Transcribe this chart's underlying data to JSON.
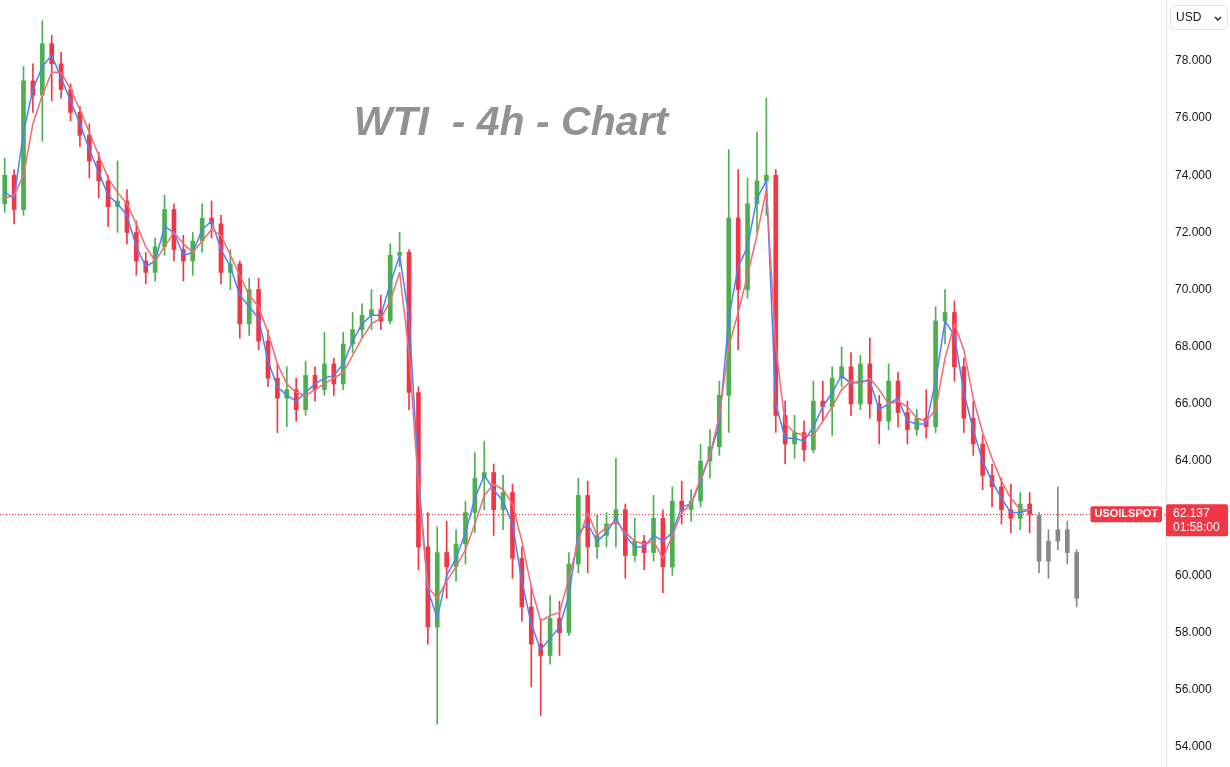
{
  "chart_data": {
    "type": "candlestick",
    "title": "WTI  - 4h - Chart",
    "ylabel": "USD",
    "tick_labels": "y",
    "categories": [
      null,
      null,
      null,
      null,
      null,
      null,
      null,
      null,
      null,
      null,
      null,
      null,
      null,
      null,
      null,
      null,
      null,
      null,
      null,
      null,
      null,
      null,
      null,
      null,
      null,
      null,
      null,
      null,
      null,
      null,
      null,
      null,
      null,
      null,
      null,
      null,
      null,
      null,
      null,
      null,
      null,
      null,
      null,
      null,
      null,
      null,
      null,
      null,
      null,
      null,
      null,
      null,
      null,
      null,
      null,
      null,
      null,
      null,
      null,
      null,
      null,
      null,
      null,
      null,
      null,
      null,
      null,
      null,
      null,
      null,
      null,
      null,
      null,
      null,
      null,
      null,
      null,
      null,
      null,
      null,
      null,
      null,
      null,
      null,
      null,
      null,
      null,
      null,
      null,
      null,
      null,
      null,
      null,
      null,
      null,
      null,
      null,
      null,
      null,
      null,
      null,
      null,
      null,
      null,
      null,
      null,
      null,
      null,
      null,
      null,
      null,
      null,
      null,
      null,
      null,
      null,
      null,
      null,
      null,
      null,
      null,
      null,
      null,
      null
    ],
    "ohlc": [
      [
        73.0,
        74.6,
        72.7,
        74.0
      ],
      [
        74.0,
        74.2,
        72.3,
        72.8
      ],
      [
        72.8,
        77.8,
        72.6,
        77.3
      ],
      [
        77.3,
        77.9,
        76.2,
        76.8
      ],
      [
        76.8,
        79.4,
        75.2,
        78.6
      ],
      [
        78.6,
        78.9,
        76.6,
        77.9
      ],
      [
        77.9,
        78.3,
        76.7,
        77.0
      ],
      [
        77.0,
        77.2,
        75.9,
        76.2
      ],
      [
        76.2,
        76.4,
        75.0,
        75.4
      ],
      [
        75.4,
        75.8,
        73.9,
        74.5
      ],
      [
        74.5,
        74.8,
        73.2,
        73.8
      ],
      [
        73.8,
        74.0,
        72.2,
        72.9
      ],
      [
        72.9,
        74.5,
        72.0,
        73.1
      ],
      [
        73.1,
        73.5,
        71.6,
        72.0
      ],
      [
        72.0,
        72.4,
        70.5,
        71.0
      ],
      [
        71.0,
        71.3,
        70.2,
        70.6
      ],
      [
        70.6,
        71.8,
        70.3,
        71.5
      ],
      [
        71.5,
        73.3,
        71.2,
        72.8
      ],
      [
        72.8,
        73.0,
        71.0,
        71.4
      ],
      [
        71.4,
        71.9,
        70.3,
        71.0
      ],
      [
        71.0,
        72.0,
        70.5,
        71.7
      ],
      [
        71.7,
        73.0,
        71.3,
        72.5
      ],
      [
        72.5,
        73.1,
        71.8,
        72.3
      ],
      [
        72.3,
        72.6,
        70.2,
        70.6
      ],
      [
        70.6,
        71.4,
        70.0,
        70.9
      ],
      [
        70.9,
        71.0,
        68.3,
        68.8
      ],
      [
        68.8,
        70.4,
        68.4,
        70.0
      ],
      [
        70.0,
        70.4,
        67.9,
        68.2
      ],
      [
        68.2,
        68.6,
        66.6,
        66.9
      ],
      [
        66.9,
        67.4,
        65.0,
        66.2
      ],
      [
        66.2,
        67.3,
        65.2,
        66.5
      ],
      [
        66.5,
        66.9,
        65.4,
        65.8
      ],
      [
        65.8,
        67.5,
        65.6,
        67.0
      ],
      [
        67.0,
        67.3,
        66.1,
        66.5
      ],
      [
        66.5,
        68.5,
        66.3,
        67.4
      ],
      [
        67.4,
        67.6,
        66.3,
        66.7
      ],
      [
        66.7,
        68.5,
        66.5,
        68.1
      ],
      [
        68.1,
        69.2,
        67.8,
        68.6
      ],
      [
        68.6,
        69.5,
        68.3,
        69.1
      ],
      [
        69.1,
        70.0,
        68.6,
        69.3
      ],
      [
        69.3,
        69.8,
        68.6,
        68.9
      ],
      [
        68.9,
        71.6,
        68.8,
        71.2
      ],
      [
        71.2,
        72.0,
        70.8,
        71.3
      ],
      [
        71.3,
        71.4,
        65.8,
        66.4
      ],
      [
        66.4,
        66.6,
        60.2,
        61.0
      ],
      [
        61.0,
        62.2,
        57.6,
        58.2
      ],
      [
        58.2,
        61.7,
        54.8,
        60.8
      ],
      [
        60.8,
        61.9,
        59.2,
        60.3
      ],
      [
        60.3,
        61.6,
        59.8,
        61.1
      ],
      [
        61.1,
        62.6,
        60.4,
        62.2
      ],
      [
        62.2,
        64.3,
        61.5,
        63.4
      ],
      [
        63.4,
        64.7,
        62.3,
        63.6
      ],
      [
        63.6,
        63.9,
        61.4,
        62.3
      ],
      [
        62.3,
        63.5,
        61.6,
        62.9
      ],
      [
        62.9,
        63.2,
        59.9,
        60.6
      ],
      [
        60.6,
        61.0,
        58.4,
        58.9
      ],
      [
        58.9,
        59.6,
        56.1,
        57.6
      ],
      [
        57.6,
        58.5,
        55.1,
        57.2
      ],
      [
        57.2,
        59.3,
        56.9,
        58.5
      ],
      [
        58.5,
        59.1,
        57.2,
        58.0
      ],
      [
        58.0,
        60.8,
        57.9,
        60.4
      ],
      [
        60.4,
        63.4,
        60.1,
        62.8
      ],
      [
        62.8,
        63.3,
        60.1,
        61.0
      ],
      [
        61.0,
        62.1,
        60.6,
        61.4
      ],
      [
        61.4,
        62.2,
        61.0,
        61.8
      ],
      [
        61.8,
        64.1,
        61.0,
        62.3
      ],
      [
        62.3,
        62.5,
        59.9,
        60.7
      ],
      [
        60.7,
        62.0,
        60.5,
        61.2
      ],
      [
        61.2,
        61.4,
        60.2,
        60.8
      ],
      [
        60.8,
        62.8,
        60.5,
        62.0
      ],
      [
        62.0,
        62.3,
        59.4,
        60.3
      ],
      [
        60.3,
        63.1,
        60.0,
        62.6
      ],
      [
        62.6,
        63.3,
        61.8,
        62.3
      ],
      [
        62.3,
        63.0,
        61.9,
        62.6
      ],
      [
        62.6,
        64.6,
        62.4,
        64.0
      ],
      [
        64.0,
        65.1,
        63.4,
        64.5
      ],
      [
        64.5,
        66.8,
        64.2,
        66.3
      ],
      [
        66.3,
        74.9,
        65.0,
        72.5
      ],
      [
        72.5,
        74.2,
        67.9,
        70.0
      ],
      [
        70.0,
        73.9,
        69.7,
        73.0
      ],
      [
        73.0,
        75.5,
        72.0,
        73.8
      ],
      [
        73.8,
        76.7,
        72.6,
        74.0
      ],
      [
        74.0,
        74.2,
        65.0,
        65.6
      ],
      [
        65.6,
        66.1,
        63.9,
        64.6
      ],
      [
        64.6,
        65.6,
        64.1,
        65.0
      ],
      [
        65.0,
        65.4,
        64.0,
        64.4
      ],
      [
        64.4,
        66.8,
        64.3,
        66.1
      ],
      [
        66.1,
        66.8,
        65.4,
        65.9
      ],
      [
        65.9,
        67.3,
        64.9,
        66.9
      ],
      [
        66.9,
        68.0,
        66.6,
        67.3
      ],
      [
        67.3,
        67.8,
        65.6,
        66.0
      ],
      [
        66.0,
        67.7,
        65.8,
        67.4
      ],
      [
        67.4,
        68.3,
        65.5,
        66.0
      ],
      [
        66.0,
        66.3,
        64.6,
        65.4
      ],
      [
        65.4,
        67.4,
        65.1,
        66.8
      ],
      [
        66.8,
        67.1,
        65.2,
        65.7
      ],
      [
        65.7,
        66.1,
        64.6,
        65.1
      ],
      [
        65.1,
        65.8,
        64.9,
        65.5
      ],
      [
        65.5,
        66.5,
        64.8,
        65.2
      ],
      [
        65.2,
        69.4,
        65.0,
        68.9
      ],
      [
        68.9,
        70.0,
        68.1,
        69.2
      ],
      [
        69.2,
        69.6,
        66.8,
        67.3
      ],
      [
        67.3,
        67.6,
        65.0,
        65.5
      ],
      [
        65.5,
        66.1,
        64.2,
        64.6
      ],
      [
        64.6,
        64.9,
        63.0,
        63.5
      ],
      [
        63.5,
        63.9,
        62.4,
        63.1
      ],
      [
        63.1,
        63.4,
        61.8,
        62.3
      ],
      [
        62.3,
        63.2,
        61.5,
        62.0
      ],
      [
        62.0,
        62.9,
        61.6,
        62.5
      ],
      [
        62.5,
        62.9,
        61.5,
        62.137
      ],
      [
        62.1,
        62.2,
        60.1,
        60.5
      ],
      [
        60.5,
        61.6,
        59.9,
        61.2
      ],
      [
        61.2,
        63.1,
        60.9,
        61.6
      ],
      [
        61.6,
        61.9,
        60.4,
        60.8
      ],
      [
        60.8,
        60.9,
        58.9,
        59.2
      ],
      null,
      null,
      null,
      null,
      null,
      null,
      null,
      null,
      null
    ],
    "colors": [
      "#4caf50",
      "#f23645",
      "#4caf50",
      "#f23645",
      "#4caf50",
      "#f23645",
      "#f23645",
      "#f23645",
      "#f23645",
      "#f23645",
      "#f23645",
      "#f23645",
      "#4caf50",
      "#f23645",
      "#f23645",
      "#f23645",
      "#4caf50",
      "#4caf50",
      "#f23645",
      "#f23645",
      "#4caf50",
      "#4caf50",
      "#f23645",
      "#f23645",
      "#4caf50",
      "#f23645",
      "#4caf50",
      "#f23645",
      "#f23645",
      "#f23645",
      "#4caf50",
      "#f23645",
      "#4caf50",
      "#f23645",
      "#4caf50",
      "#f23645",
      "#4caf50",
      "#4caf50",
      "#4caf50",
      "#4caf50",
      "#f23645",
      "#4caf50",
      "#4caf50",
      "#f23645",
      "#f23645",
      "#f23645",
      "#4caf50",
      "#f23645",
      "#4caf50",
      "#4caf50",
      "#4caf50",
      "#4caf50",
      "#f23645",
      "#4caf50",
      "#f23645",
      "#f23645",
      "#f23645",
      "#f23645",
      "#4caf50",
      "#f23645",
      "#4caf50",
      "#4caf50",
      "#f23645",
      "#4caf50",
      "#4caf50",
      "#4caf50",
      "#f23645",
      "#4caf50",
      "#f23645",
      "#4caf50",
      "#f23645",
      "#4caf50",
      "#f23645",
      "#4caf50",
      "#4caf50",
      "#4caf50",
      "#4caf50",
      "#4caf50",
      "#f23645",
      "#4caf50",
      "#4caf50",
      "#4caf50",
      "#f23645",
      "#f23645",
      "#4caf50",
      "#f23645",
      "#4caf50",
      "#f23645",
      "#4caf50",
      "#4caf50",
      "#f23645",
      "#4caf50",
      "#f23645",
      "#f23645",
      "#4caf50",
      "#f23645",
      "#f23645",
      "#4caf50",
      "#f23645",
      "#4caf50",
      "#4caf50",
      "#f23645",
      "#f23645",
      "#f23645",
      "#f23645",
      "#f23645",
      "#f23645",
      "#f23645",
      "#4caf50",
      "#f23645",
      "#888888",
      "#888888",
      "#888888",
      "#888888",
      "#888888",
      null,
      null,
      null,
      null,
      null,
      null,
      null,
      null,
      null
    ],
    "series": [
      {
        "type": "line",
        "color": "#f06b78",
        "values": [
          73.2,
          73.3,
          74.0,
          75.8,
          76.8,
          77.6,
          77.6,
          77.0,
          76.3,
          75.5,
          74.7,
          73.9,
          73.4,
          73.0,
          72.3,
          71.5,
          71.0,
          71.5,
          72.0,
          71.6,
          71.3,
          71.7,
          72.1,
          71.9,
          71.2,
          70.5,
          69.8,
          69.4,
          68.5,
          67.4,
          66.7,
          66.4,
          66.3,
          66.5,
          66.7,
          66.9,
          67.1,
          67.7,
          68.3,
          68.8,
          69.0,
          69.6,
          70.6,
          67.8,
          63.1,
          59.6,
          59.2,
          59.8,
          60.3,
          60.9,
          61.8,
          62.8,
          63.2,
          63.0,
          62.5,
          61.2,
          59.6,
          58.4,
          58.6,
          58.7,
          59.9,
          61.2,
          62.2,
          61.4,
          61.7,
          61.9,
          61.5,
          61.2,
          61.1,
          61.2,
          60.6,
          61.4,
          62.2,
          62.5,
          63.4,
          64.2,
          65.6,
          68.0,
          69.2,
          70.5,
          71.9,
          73.5,
          68.0,
          65.3,
          65.0,
          64.9,
          64.9,
          65.4,
          65.9,
          66.5,
          66.8,
          66.7,
          66.9,
          66.5,
          66.0,
          66.1,
          65.9,
          65.5,
          65.4,
          65.8,
          67.6,
          68.8,
          67.9,
          66.2,
          65.0,
          64.1,
          63.3,
          62.7,
          62.3,
          62.3,
          null,
          null,
          null,
          null,
          null,
          null,
          null,
          null,
          null,
          null,
          null,
          null,
          null,
          null
        ]
      },
      {
        "type": "line",
        "color": "#4d82f7",
        "values": [
          73.4,
          73.2,
          75.5,
          77.0,
          77.8,
          78.2,
          77.4,
          76.6,
          75.8,
          74.9,
          74.1,
          73.3,
          73.0,
          72.6,
          71.5,
          70.8,
          71.0,
          72.2,
          72.0,
          71.2,
          71.3,
          72.1,
          72.4,
          71.4,
          70.8,
          69.8,
          69.4,
          69.0,
          67.5,
          66.6,
          66.3,
          66.1,
          66.4,
          66.7,
          66.9,
          67.0,
          67.4,
          68.2,
          68.8,
          69.1,
          69.1,
          70.2,
          71.2,
          69.0,
          63.5,
          59.5,
          58.5,
          60.0,
          60.6,
          61.5,
          62.7,
          63.5,
          63.0,
          62.6,
          61.8,
          59.8,
          58.3,
          57.4,
          57.8,
          58.2,
          59.3,
          61.5,
          61.8,
          61.2,
          61.5,
          62.0,
          61.4,
          61.0,
          61.0,
          61.4,
          61.2,
          61.5,
          62.4,
          62.5,
          63.3,
          64.2,
          65.3,
          69.0,
          70.8,
          71.5,
          73.2,
          73.8,
          66.0,
          64.8,
          64.8,
          64.7,
          65.2,
          65.9,
          66.4,
          67.0,
          66.7,
          66.8,
          66.8,
          65.8,
          66.0,
          66.2,
          65.4,
          65.3,
          65.3,
          66.8,
          68.9,
          68.4,
          66.4,
          65.1,
          64.0,
          63.3,
          62.7,
          62.2,
          62.2,
          62.3,
          null,
          null,
          null,
          null,
          null,
          null,
          null,
          null,
          null,
          null,
          null,
          null,
          null,
          null
        ]
      }
    ],
    "ylim": [
      53.3,
      80.13
    ],
    "yticks": [
      {
        "value": 54,
        "label": "54.000"
      },
      {
        "value": 56,
        "label": "56.000"
      },
      {
        "value": 58,
        "label": "58.000"
      },
      {
        "value": 60,
        "label": "60.000"
      },
      {
        "value": 64,
        "label": "64.000"
      },
      {
        "value": 66,
        "label": "66.000"
      },
      {
        "value": 68,
        "label": "68.000"
      },
      {
        "value": 70,
        "label": "70.000"
      },
      {
        "value": 72,
        "label": "72.000"
      },
      {
        "value": 74,
        "label": "74.000"
      },
      {
        "value": 76,
        "label": "76.000"
      },
      {
        "value": 78,
        "label": "78.000"
      }
    ],
    "ref_lines": [
      {
        "axis": "y",
        "value": 62.137,
        "label": "USOILSPOT",
        "color": "#f23645",
        "line_style": "dotted"
      }
    ],
    "annotations": [
      "62.137",
      "01:58:00"
    ]
  }
}
